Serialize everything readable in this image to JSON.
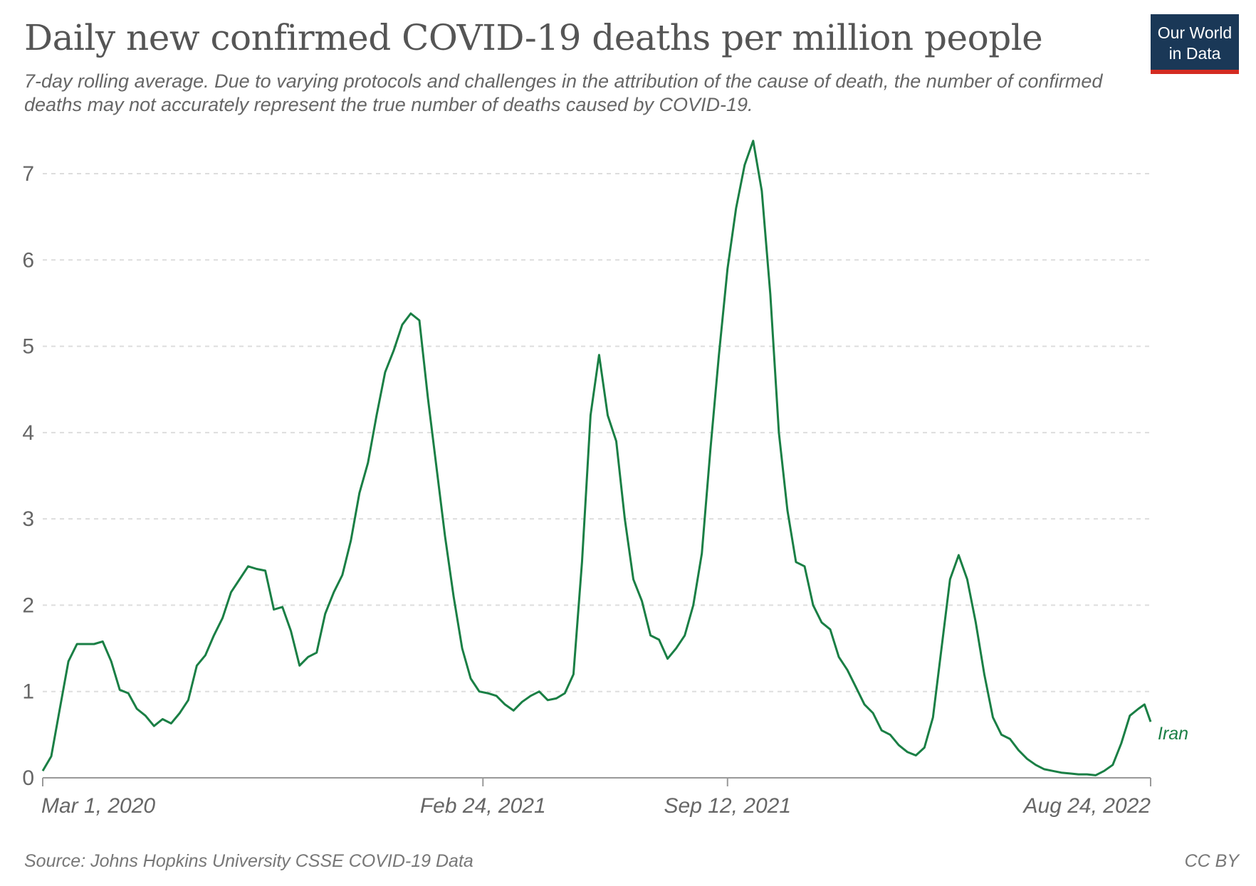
{
  "header": {
    "title": "Daily new confirmed COVID-19 deaths per million people",
    "subtitle": "7-day rolling average. Due to varying protocols and challenges in the attribution of the cause of death, the number of confirmed deaths may not accurately represent the true number of deaths caused by COVID-19."
  },
  "logo": {
    "line1": "Our World",
    "line2": "in Data",
    "bg_color": "#1a3857",
    "accent_color": "#d42b21"
  },
  "footer": {
    "source": "Source: Johns Hopkins University CSSE COVID-19 Data",
    "license": "CC BY"
  },
  "chart_data": {
    "type": "line",
    "title": "Daily new confirmed COVID-19 deaths per million people",
    "xlabel": "",
    "ylabel": "",
    "x_range": [
      "2020-03-01",
      "2022-08-24"
    ],
    "ylim": [
      0,
      7.4
    ],
    "y_ticks": [
      0,
      1,
      2,
      3,
      4,
      5,
      6,
      7
    ],
    "x_ticks": [
      {
        "date": "2020-03-01",
        "label": "Mar 1, 2020"
      },
      {
        "date": "2021-02-24",
        "label": "Feb 24, 2021"
      },
      {
        "date": "2021-09-12",
        "label": "Sep 12, 2021"
      },
      {
        "date": "2022-08-24",
        "label": "Aug 24, 2022"
      }
    ],
    "grid": "horizontal-dashed",
    "series": [
      {
        "name": "Iran",
        "color": "#1a7f45",
        "points": [
          [
            "2020-03-01",
            0.08
          ],
          [
            "2020-03-08",
            0.25
          ],
          [
            "2020-03-15",
            0.8
          ],
          [
            "2020-03-22",
            1.35
          ],
          [
            "2020-03-29",
            1.55
          ],
          [
            "2020-04-05",
            1.55
          ],
          [
            "2020-04-12",
            1.55
          ],
          [
            "2020-04-19",
            1.58
          ],
          [
            "2020-04-26",
            1.35
          ],
          [
            "2020-05-03",
            1.02
          ],
          [
            "2020-05-10",
            0.98
          ],
          [
            "2020-05-17",
            0.8
          ],
          [
            "2020-05-24",
            0.72
          ],
          [
            "2020-05-31",
            0.6
          ],
          [
            "2020-06-07",
            0.68
          ],
          [
            "2020-06-14",
            0.63
          ],
          [
            "2020-06-21",
            0.75
          ],
          [
            "2020-06-28",
            0.9
          ],
          [
            "2020-07-05",
            1.3
          ],
          [
            "2020-07-12",
            1.42
          ],
          [
            "2020-07-19",
            1.65
          ],
          [
            "2020-07-26",
            1.85
          ],
          [
            "2020-08-02",
            2.15
          ],
          [
            "2020-08-09",
            2.3
          ],
          [
            "2020-08-16",
            2.45
          ],
          [
            "2020-08-23",
            2.42
          ],
          [
            "2020-08-30",
            2.4
          ],
          [
            "2020-09-06",
            1.95
          ],
          [
            "2020-09-13",
            1.98
          ],
          [
            "2020-09-20",
            1.7
          ],
          [
            "2020-09-27",
            1.3
          ],
          [
            "2020-10-04",
            1.4
          ],
          [
            "2020-10-11",
            1.45
          ],
          [
            "2020-10-18",
            1.9
          ],
          [
            "2020-10-25",
            2.15
          ],
          [
            "2020-11-01",
            2.35
          ],
          [
            "2020-11-08",
            2.75
          ],
          [
            "2020-11-15",
            3.3
          ],
          [
            "2020-11-22",
            3.65
          ],
          [
            "2020-11-29",
            4.2
          ],
          [
            "2020-12-06",
            4.7
          ],
          [
            "2020-12-13",
            4.95
          ],
          [
            "2020-12-20",
            5.25
          ],
          [
            "2020-12-27",
            5.38
          ],
          [
            "2021-01-03",
            5.3
          ],
          [
            "2021-01-10",
            4.4
          ],
          [
            "2021-01-17",
            3.6
          ],
          [
            "2021-01-24",
            2.8
          ],
          [
            "2021-01-31",
            2.1
          ],
          [
            "2021-02-07",
            1.5
          ],
          [
            "2021-02-14",
            1.15
          ],
          [
            "2021-02-21",
            1.0
          ],
          [
            "2021-02-28",
            0.98
          ],
          [
            "2021-03-07",
            0.95
          ],
          [
            "2021-03-14",
            0.85
          ],
          [
            "2021-03-21",
            0.78
          ],
          [
            "2021-03-28",
            0.88
          ],
          [
            "2021-04-04",
            0.95
          ],
          [
            "2021-04-11",
            1.0
          ],
          [
            "2021-04-18",
            0.9
          ],
          [
            "2021-04-25",
            0.92
          ],
          [
            "2021-05-02",
            0.98
          ],
          [
            "2021-05-09",
            1.2
          ],
          [
            "2021-05-16",
            2.5
          ],
          [
            "2021-05-23",
            4.2
          ],
          [
            "2021-05-30",
            4.9
          ],
          [
            "2021-06-06",
            4.2
          ],
          [
            "2021-06-13",
            3.9
          ],
          [
            "2021-06-20",
            3.0
          ],
          [
            "2021-06-27",
            2.3
          ],
          [
            "2021-07-04",
            2.05
          ],
          [
            "2021-07-11",
            1.65
          ],
          [
            "2021-07-18",
            1.6
          ],
          [
            "2021-07-25",
            1.38
          ],
          [
            "2021-08-01",
            1.5
          ],
          [
            "2021-08-08",
            1.65
          ],
          [
            "2021-08-15",
            2.0
          ],
          [
            "2021-08-22",
            2.6
          ],
          [
            "2021-08-29",
            3.8
          ],
          [
            "2021-09-05",
            4.9
          ],
          [
            "2021-09-12",
            5.9
          ],
          [
            "2021-09-19",
            6.6
          ],
          [
            "2021-09-26",
            7.1
          ],
          [
            "2021-10-03",
            7.38
          ],
          [
            "2021-10-10",
            6.8
          ],
          [
            "2021-10-17",
            5.6
          ],
          [
            "2021-10-24",
            4.0
          ],
          [
            "2021-10-31",
            3.1
          ],
          [
            "2021-11-07",
            2.5
          ],
          [
            "2021-11-14",
            2.45
          ],
          [
            "2021-11-21",
            2.0
          ],
          [
            "2021-11-28",
            1.8
          ],
          [
            "2021-12-05",
            1.72
          ],
          [
            "2021-12-12",
            1.4
          ],
          [
            "2021-12-19",
            1.25
          ],
          [
            "2021-12-26",
            1.05
          ],
          [
            "2022-01-02",
            0.85
          ],
          [
            "2022-01-09",
            0.75
          ],
          [
            "2022-01-16",
            0.55
          ],
          [
            "2022-01-23",
            0.5
          ],
          [
            "2022-01-30",
            0.38
          ],
          [
            "2022-02-06",
            0.3
          ],
          [
            "2022-02-13",
            0.26
          ],
          [
            "2022-02-20",
            0.35
          ],
          [
            "2022-02-27",
            0.7
          ],
          [
            "2022-03-06",
            1.5
          ],
          [
            "2022-03-13",
            2.3
          ],
          [
            "2022-03-20",
            2.58
          ],
          [
            "2022-03-27",
            2.3
          ],
          [
            "2022-04-03",
            1.8
          ],
          [
            "2022-04-10",
            1.2
          ],
          [
            "2022-04-17",
            0.7
          ],
          [
            "2022-04-24",
            0.5
          ],
          [
            "2022-05-01",
            0.45
          ],
          [
            "2022-05-08",
            0.32
          ],
          [
            "2022-05-15",
            0.22
          ],
          [
            "2022-05-22",
            0.15
          ],
          [
            "2022-05-29",
            0.1
          ],
          [
            "2022-06-05",
            0.08
          ],
          [
            "2022-06-12",
            0.06
          ],
          [
            "2022-06-19",
            0.05
          ],
          [
            "2022-06-26",
            0.04
          ],
          [
            "2022-07-03",
            0.04
          ],
          [
            "2022-07-10",
            0.03
          ],
          [
            "2022-07-17",
            0.08
          ],
          [
            "2022-07-24",
            0.15
          ],
          [
            "2022-07-31",
            0.4
          ],
          [
            "2022-08-07",
            0.72
          ],
          [
            "2022-08-14",
            0.8
          ],
          [
            "2022-08-19",
            0.85
          ],
          [
            "2022-08-24",
            0.65
          ]
        ]
      }
    ]
  }
}
